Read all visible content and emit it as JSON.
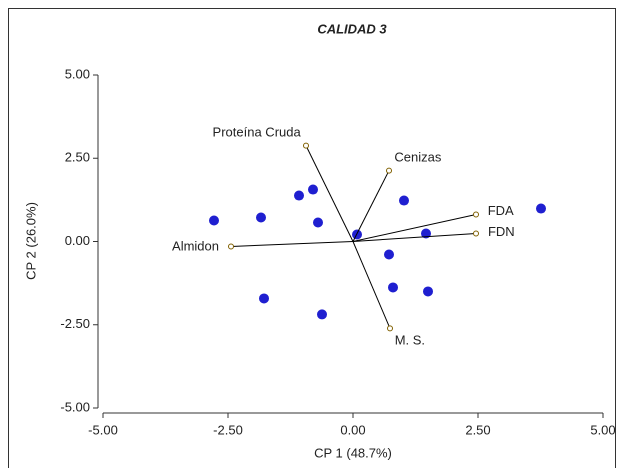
{
  "chart_data": {
    "type": "biplot",
    "title": "CALIDAD 3",
    "xlabel": "CP 1 (48.7%)",
    "ylabel": "CP 2 (26.0%)",
    "xlim": [
      -5,
      5
    ],
    "ylim": [
      -5,
      5
    ],
    "xticks": [
      {
        "value": -5,
        "label": "-5.00"
      },
      {
        "value": -2.5,
        "label": "-2.50"
      },
      {
        "value": 0,
        "label": "0.00"
      },
      {
        "value": 2.5,
        "label": "2.50"
      },
      {
        "value": 5,
        "label": "5.00"
      }
    ],
    "yticks": [
      {
        "value": -5,
        "label": "-5.00"
      },
      {
        "value": -2.5,
        "label": "-2.50"
      },
      {
        "value": 0,
        "label": "0.00"
      },
      {
        "value": 2.5,
        "label": "2.50"
      },
      {
        "value": 5,
        "label": "5.00"
      }
    ],
    "points": {
      "color": "#1f1fd0",
      "x": [
        -2.78,
        -1.84,
        -1.08,
        -0.8,
        -0.7,
        0.08,
        1.02,
        1.46,
        0.72,
        0.8,
        1.5,
        -1.78,
        -0.62,
        3.76
      ],
      "y": [
        0.63,
        0.72,
        1.38,
        1.56,
        0.57,
        0.21,
        1.23,
        0.24,
        -0.39,
        -1.38,
        -1.5,
        -1.71,
        -2.19,
        0.99
      ]
    },
    "vectors": [
      {
        "label": "Proteína Cruda",
        "x": -0.94,
        "y": 2.88
      },
      {
        "label": "Cenizas",
        "x": 0.72,
        "y": 2.13
      },
      {
        "label": "FDA",
        "x": 2.46,
        "y": 0.81
      },
      {
        "label": "FDN",
        "x": 2.46,
        "y": 0.24
      },
      {
        "label": "Almidon",
        "x": -2.44,
        "y": -0.15
      },
      {
        "label": "M. S.",
        "x": 0.74,
        "y": -2.61
      }
    ],
    "vector_color": "#000000"
  }
}
